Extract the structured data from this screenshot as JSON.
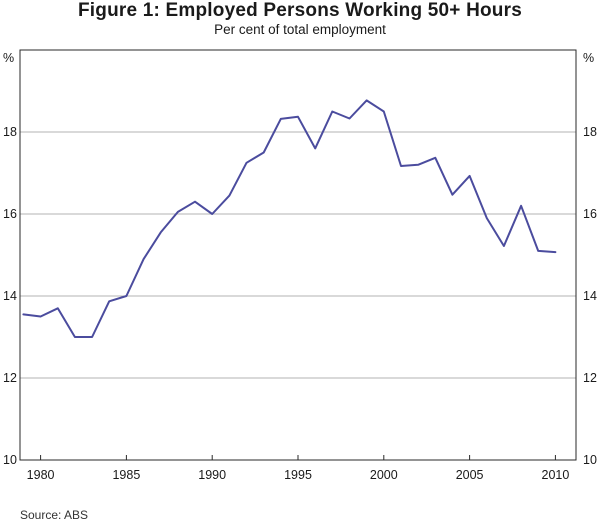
{
  "chart_data": {
    "type": "line",
    "title": "Figure 1: Employed Persons Working 50+ Hours",
    "subtitle": "Per cent of total employment",
    "ylabel_left": "%",
    "ylabel_right": "%",
    "ylim": [
      10,
      20
    ],
    "yticks": [
      10,
      12,
      14,
      16,
      18
    ],
    "xlim": [
      1978.8,
      2011.2
    ],
    "xticks": [
      1980,
      1985,
      1990,
      1995,
      2000,
      2005,
      2010
    ],
    "grid": true,
    "series": [
      {
        "name": "Employed persons working 50+ hours",
        "color": "#4b4c9e",
        "x": [
          1979,
          1980,
          1981,
          1982,
          1983,
          1984,
          1985,
          1986,
          1987,
          1988,
          1989,
          1990,
          1991,
          1992,
          1993,
          1994,
          1995,
          1996,
          1997,
          1998,
          1999,
          2000,
          2001,
          2002,
          2003,
          2004,
          2005,
          2006,
          2007,
          2008,
          2009,
          2010
        ],
        "y": [
          13.55,
          13.5,
          13.7,
          13.0,
          13.0,
          13.87,
          14.0,
          14.9,
          15.55,
          16.05,
          16.3,
          16.0,
          16.45,
          17.25,
          17.5,
          18.32,
          18.37,
          17.6,
          18.5,
          18.33,
          18.77,
          18.5,
          17.17,
          17.2,
          17.37,
          16.47,
          16.93,
          15.9,
          15.22,
          16.2,
          15.1,
          15.07
        ]
      }
    ]
  },
  "source": "Source: ABS"
}
